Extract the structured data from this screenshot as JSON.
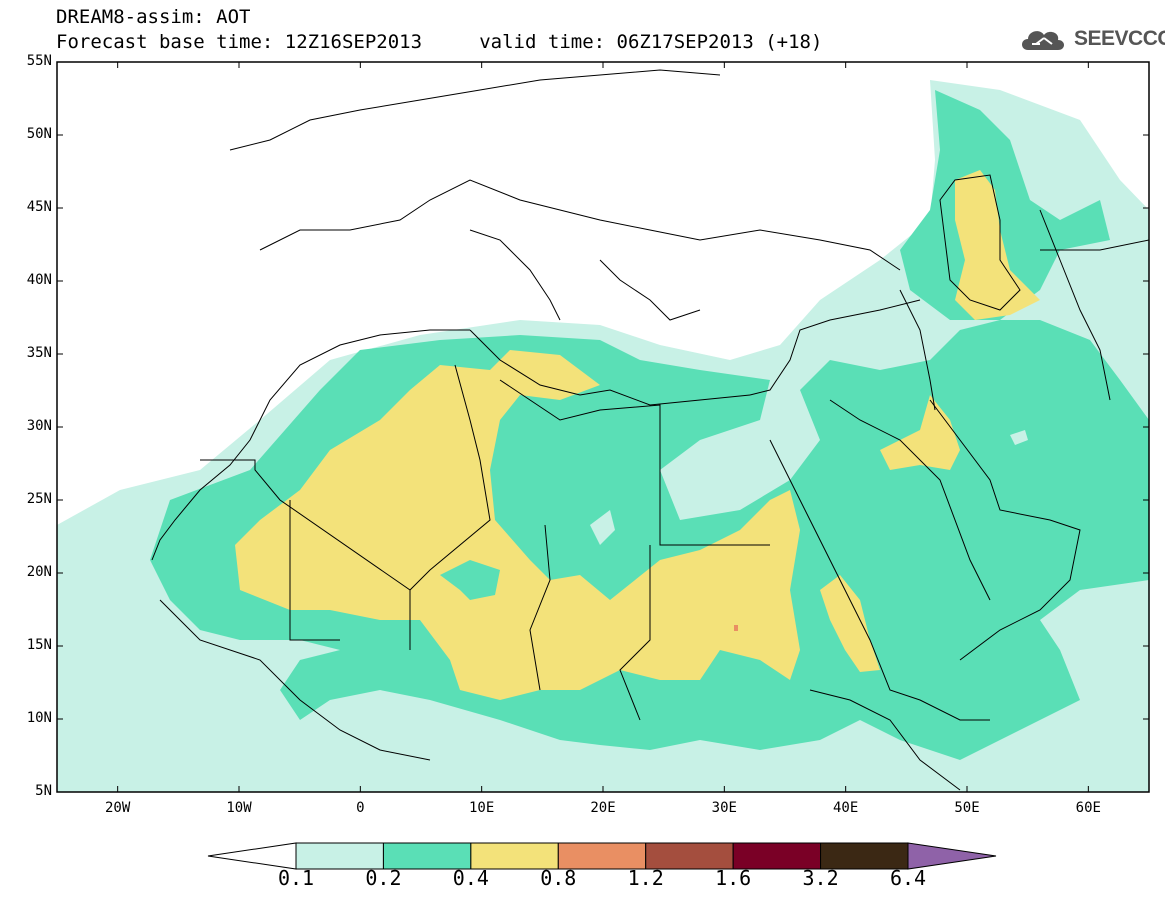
{
  "header": {
    "title_line1": "DREAM8-assim: AOT",
    "title_line2": "Forecast base time: 12Z16SEP2013     valid time: 06Z17SEP2013 (+18)"
  },
  "logo": {
    "text": "SEEVCCC",
    "icon": "cloud-icon"
  },
  "axes": {
    "lat_labels": [
      "55N",
      "50N",
      "45N",
      "40N",
      "35N",
      "30N",
      "25N",
      "20N",
      "15N",
      "10N",
      "5N"
    ],
    "lon_labels": [
      "20W",
      "10W",
      "0",
      "10E",
      "20E",
      "30E",
      "40E",
      "50E",
      "60E"
    ],
    "lat_range": [
      5,
      55
    ],
    "lon_range": [
      -25,
      65
    ]
  },
  "colorbar": {
    "labels": [
      "0.1",
      "0.2",
      "0.4",
      "0.8",
      "1.2",
      "1.6",
      "3.2",
      "6.4"
    ],
    "colors": [
      "#ffffff",
      "#c8f1e6",
      "#5adfb6",
      "#f3e27a",
      "#e98f63",
      "#a44e3e",
      "#7a0026",
      "#3b2814",
      "#8f62a8"
    ]
  },
  "colors": {
    "aot_0_1_0_2": "#c8f1e6",
    "aot_0_2_0_4": "#5adfb6",
    "aot_0_4_0_8": "#f3e27a",
    "aot_0_8_1_2": "#e98f63",
    "border": "#000000"
  }
}
